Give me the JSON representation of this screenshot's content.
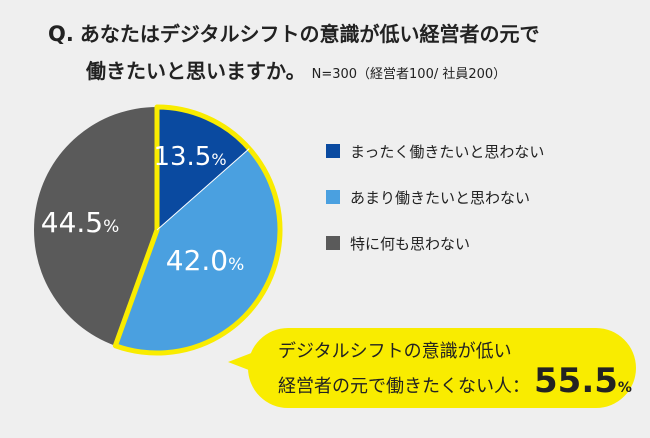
{
  "question": {
    "mark": "Q.",
    "line1": "あなたはデジタルシフトの意識が低い経営者の元で",
    "line2": "働きたいと思いますか。",
    "sample": "N=300（経営者100/ 社員200）"
  },
  "callout": {
    "line1": "デジタルシフトの意識が低い",
    "line2": "経営者の元で働きたくない人：",
    "value": "55.5",
    "unit": "%"
  },
  "chart_data": {
    "type": "pie",
    "categories": [
      "まったく働きたいと思わない",
      "あまり働きたいと思わない",
      "特に何も思わない"
    ],
    "values": [
      13.5,
      42.0,
      44.5
    ],
    "labels": [
      "13.5",
      "42.0",
      "44.5"
    ],
    "unit": "%",
    "colors": [
      "#0a4aa0",
      "#4aa0e0",
      "#5a5a5a"
    ],
    "highlight_color": "#f9ec00",
    "highlight_slices": [
      0,
      1
    ],
    "legend_position": "right"
  }
}
